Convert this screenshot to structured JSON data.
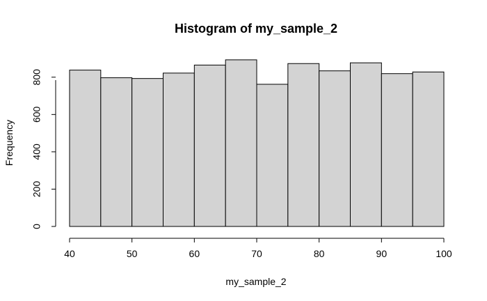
{
  "chart_data": {
    "type": "bar",
    "title": "Histogram of my_sample_2",
    "xlabel": "my_sample_2",
    "ylabel": "Frequency",
    "x_ticks": [
      40,
      50,
      60,
      70,
      80,
      90,
      100
    ],
    "y_ticks": [
      0,
      200,
      400,
      600,
      800
    ],
    "xlim": [
      40,
      100
    ],
    "ylim": [
      0,
      900
    ],
    "bins": [
      {
        "start": 40,
        "end": 45,
        "value": 838
      },
      {
        "start": 45,
        "end": 50,
        "value": 797
      },
      {
        "start": 50,
        "end": 55,
        "value": 793
      },
      {
        "start": 55,
        "end": 60,
        "value": 822
      },
      {
        "start": 60,
        "end": 65,
        "value": 865
      },
      {
        "start": 65,
        "end": 70,
        "value": 893
      },
      {
        "start": 70,
        "end": 75,
        "value": 762
      },
      {
        "start": 75,
        "end": 80,
        "value": 873
      },
      {
        "start": 80,
        "end": 85,
        "value": 834
      },
      {
        "start": 85,
        "end": 90,
        "value": 877
      },
      {
        "start": 90,
        "end": 95,
        "value": 819
      },
      {
        "start": 95,
        "end": 100,
        "value": 828
      }
    ],
    "grid": false,
    "colors": {
      "bar_fill": "#d3d3d3",
      "bar_stroke": "#000000",
      "axis": "#000000",
      "text": "#000000",
      "background": "#ffffff"
    }
  }
}
